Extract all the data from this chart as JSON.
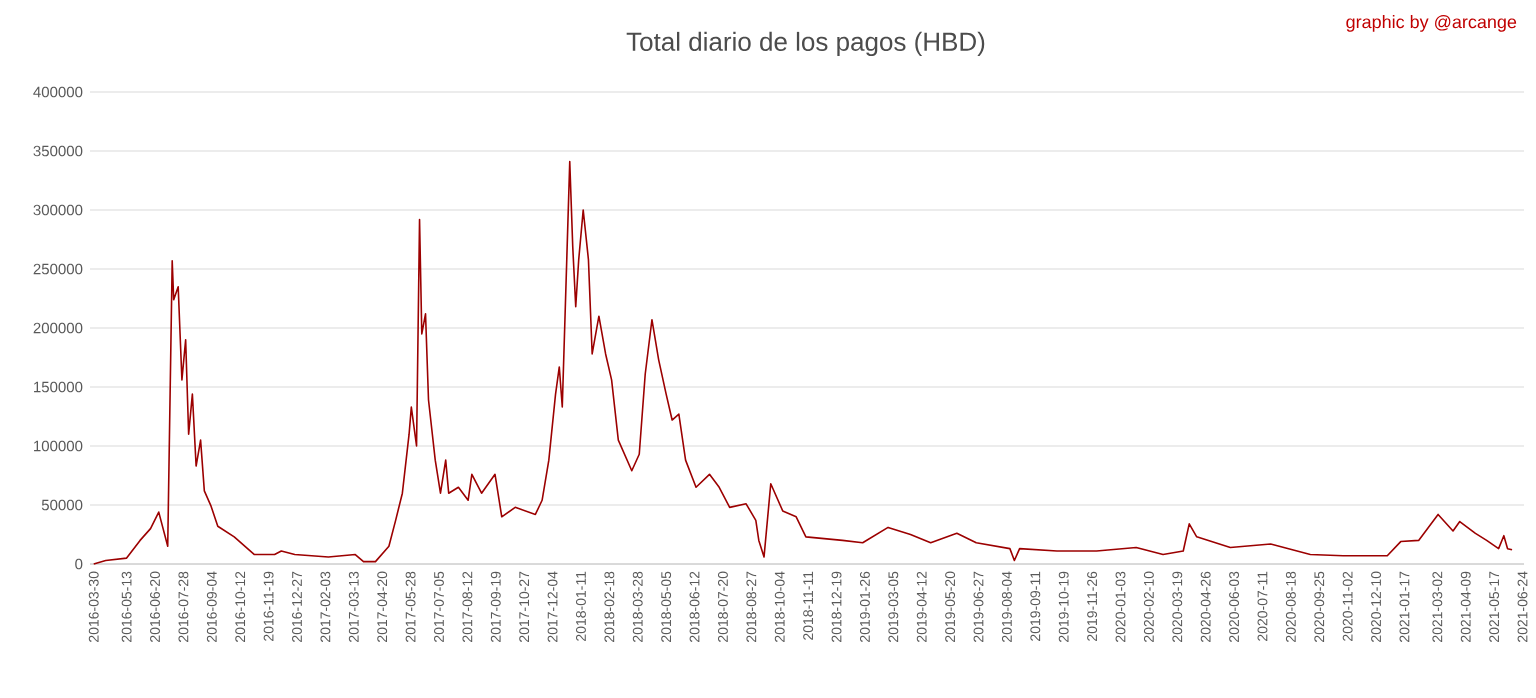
{
  "chart_data": {
    "type": "line",
    "title": "Total diario de los pagos (HBD)",
    "annotations": [
      "graphic by @arcange"
    ],
    "x": [
      "2016-03-30",
      "2016-04-15",
      "2016-05-13",
      "2016-05-31",
      "2016-06-14",
      "2016-06-25",
      "2016-07-07",
      "2016-07-10",
      "2016-07-13",
      "2016-07-15",
      "2016-07-21",
      "2016-07-26",
      "2016-07-31",
      "2016-08-04",
      "2016-08-09",
      "2016-08-14",
      "2016-08-20",
      "2016-08-25",
      "2016-09-03",
      "2016-09-12",
      "2016-10-04",
      "2016-10-31",
      "2016-11-27",
      "2016-12-06",
      "2016-12-24",
      "2017-02-07",
      "2017-03-15",
      "2017-03-26",
      "2017-04-11",
      "2017-04-29",
      "2017-05-08",
      "2017-05-17",
      "2017-05-26",
      "2017-05-29",
      "2017-06-05",
      "2017-06-09",
      "2017-06-12",
      "2017-06-17",
      "2017-06-21",
      "2017-06-30",
      "2017-07-07",
      "2017-07-14",
      "2017-07-18",
      "2017-07-31",
      "2017-08-13",
      "2017-08-18",
      "2017-08-31",
      "2017-09-18",
      "2017-09-27",
      "2017-10-15",
      "2017-11-11",
      "2017-11-20",
      "2017-11-29",
      "2017-12-08",
      "2017-12-13",
      "2017-12-17",
      "2017-12-27",
      "2017-12-31",
      "2018-01-04",
      "2018-01-08",
      "2018-01-14",
      "2018-01-21",
      "2018-01-26",
      "2018-02-04",
      "2018-02-13",
      "2018-02-21",
      "2018-03-02",
      "2018-03-20",
      "2018-03-30",
      "2018-04-07",
      "2018-04-16",
      "2018-04-25",
      "2018-05-05",
      "2018-05-13",
      "2018-05-22",
      "2018-05-31",
      "2018-06-14",
      "2018-07-02",
      "2018-07-15",
      "2018-07-29",
      "2018-08-20",
      "2018-09-02",
      "2018-09-06",
      "2018-09-13",
      "2018-09-22",
      "2018-10-08",
      "2018-10-26",
      "2018-11-08",
      "2018-12-27",
      "2019-01-23",
      "2019-02-26",
      "2019-03-28",
      "2019-04-24",
      "2019-05-29",
      "2019-06-24",
      "2019-08-08",
      "2019-08-14",
      "2019-08-21",
      "2019-10-10",
      "2019-12-02",
      "2020-01-24",
      "2020-02-29",
      "2020-03-27",
      "2020-04-04",
      "2020-04-14",
      "2020-05-29",
      "2020-07-22",
      "2020-09-13",
      "2020-10-27",
      "2020-12-25",
      "2021-01-12",
      "2021-02-05",
      "2021-03-03",
      "2021-03-23",
      "2021-04-01",
      "2021-04-22",
      "2021-05-07",
      "2021-05-23",
      "2021-05-30",
      "2021-06-04",
      "2021-06-10"
    ],
    "series": [
      {
        "color": "#9c0000",
        "values": [
          0,
          3000,
          5000,
          20000,
          30000,
          44000,
          15000,
          136000,
          257000,
          224000,
          235000,
          156000,
          190000,
          110000,
          144000,
          83000,
          105000,
          62000,
          49000,
          32000,
          23000,
          8000,
          8000,
          11000,
          8000,
          6000,
          8000,
          2000,
          2000,
          15000,
          37000,
          60000,
          110000,
          133000,
          100000,
          292000,
          195000,
          212000,
          139000,
          88000,
          60000,
          88000,
          60000,
          65000,
          54000,
          76000,
          60000,
          76000,
          40000,
          48000,
          42000,
          54000,
          88000,
          144000,
          167000,
          133000,
          341000,
          269000,
          218000,
          258000,
          300000,
          258000,
          178000,
          210000,
          178000,
          156000,
          105000,
          79000,
          93000,
          161000,
          207000,
          173000,
          144000,
          122000,
          127000,
          88000,
          65000,
          76000,
          65000,
          48000,
          51000,
          37000,
          20000,
          6000,
          68000,
          45000,
          40000,
          23000,
          20000,
          18000,
          31000,
          25000,
          18000,
          26000,
          18000,
          13000,
          3000,
          13000,
          11000,
          11000,
          14000,
          8000,
          11000,
          34000,
          23000,
          14000,
          17000,
          8000,
          7000,
          7000,
          19000,
          20000,
          42000,
          28000,
          36000,
          26000,
          20000,
          13000,
          24000,
          13000,
          12000
        ]
      }
    ],
    "xlim": [
      "2016-03-25",
      "2021-06-26"
    ],
    "xticks": [
      "2016-03-30",
      "2016-05-13",
      "2016-06-20",
      "2016-07-28",
      "2016-09-04",
      "2016-10-12",
      "2016-11-19",
      "2016-12-27",
      "2017-02-03",
      "2017-03-13",
      "2017-04-20",
      "2017-05-28",
      "2017-07-05",
      "2017-08-12",
      "2017-09-19",
      "2017-10-27",
      "2017-12-04",
      "2018-01-11",
      "2018-02-18",
      "2018-03-28",
      "2018-05-05",
      "2018-06-12",
      "2018-07-20",
      "2018-08-27",
      "2018-10-04",
      "2018-11-11",
      "2018-12-19",
      "2019-01-26",
      "2019-03-05",
      "2019-04-12",
      "2019-05-20",
      "2019-06-27",
      "2019-08-04",
      "2019-09-11",
      "2019-10-19",
      "2019-11-26",
      "2020-01-03",
      "2020-02-10",
      "2020-03-19",
      "2020-04-26",
      "2020-06-03",
      "2020-07-11",
      "2020-08-18",
      "2020-09-25",
      "2020-11-02",
      "2020-12-10",
      "2021-01-17",
      "2021-03-02",
      "2021-04-09",
      "2021-05-17",
      "2021-06-24"
    ],
    "ylim": [
      0,
      400000
    ],
    "yticks": [
      0,
      50000,
      100000,
      150000,
      200000,
      250000,
      300000,
      350000,
      400000
    ],
    "grid": "y",
    "marker": "none",
    "line_style": "solid"
  }
}
